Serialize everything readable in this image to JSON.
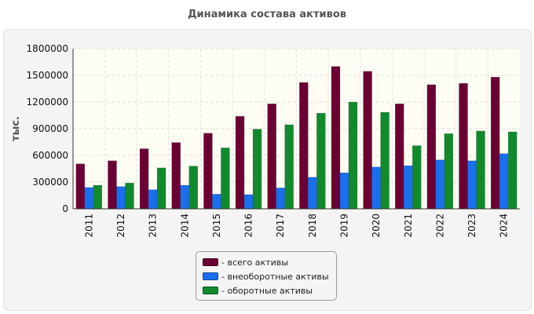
{
  "chart_data": {
    "type": "bar",
    "title": "Динамика состава активов",
    "ylabel": "тыс.",
    "xlabel": "",
    "ylim": [
      0,
      1800000
    ],
    "yticks": [
      0,
      300000,
      600000,
      900000,
      1200000,
      1500000,
      1800000
    ],
    "grid": true,
    "legend_position": "bottom-center",
    "categories": [
      "2011",
      "2012",
      "2013",
      "2014",
      "2015",
      "2016",
      "2017",
      "2018",
      "2019",
      "2020",
      "2021",
      "2022",
      "2023",
      "2024"
    ],
    "series": [
      {
        "name": "- всего активы",
        "color": "#6b0033",
        "values": [
          505000,
          540000,
          675000,
          745000,
          850000,
          1040000,
          1180000,
          1420000,
          1600000,
          1545000,
          1180000,
          1395000,
          1410000,
          1480000
        ]
      },
      {
        "name": "- внеоборотные активы",
        "color": "#1a6ef0",
        "values": [
          240000,
          250000,
          215000,
          265000,
          165000,
          160000,
          235000,
          355000,
          405000,
          470000,
          485000,
          550000,
          540000,
          620000
        ]
      },
      {
        "name": "- оборотные активы",
        "color": "#118a2e",
        "values": [
          265000,
          290000,
          460000,
          480000,
          685000,
          895000,
          945000,
          1075000,
          1200000,
          1085000,
          710000,
          845000,
          875000,
          865000
        ]
      }
    ]
  }
}
